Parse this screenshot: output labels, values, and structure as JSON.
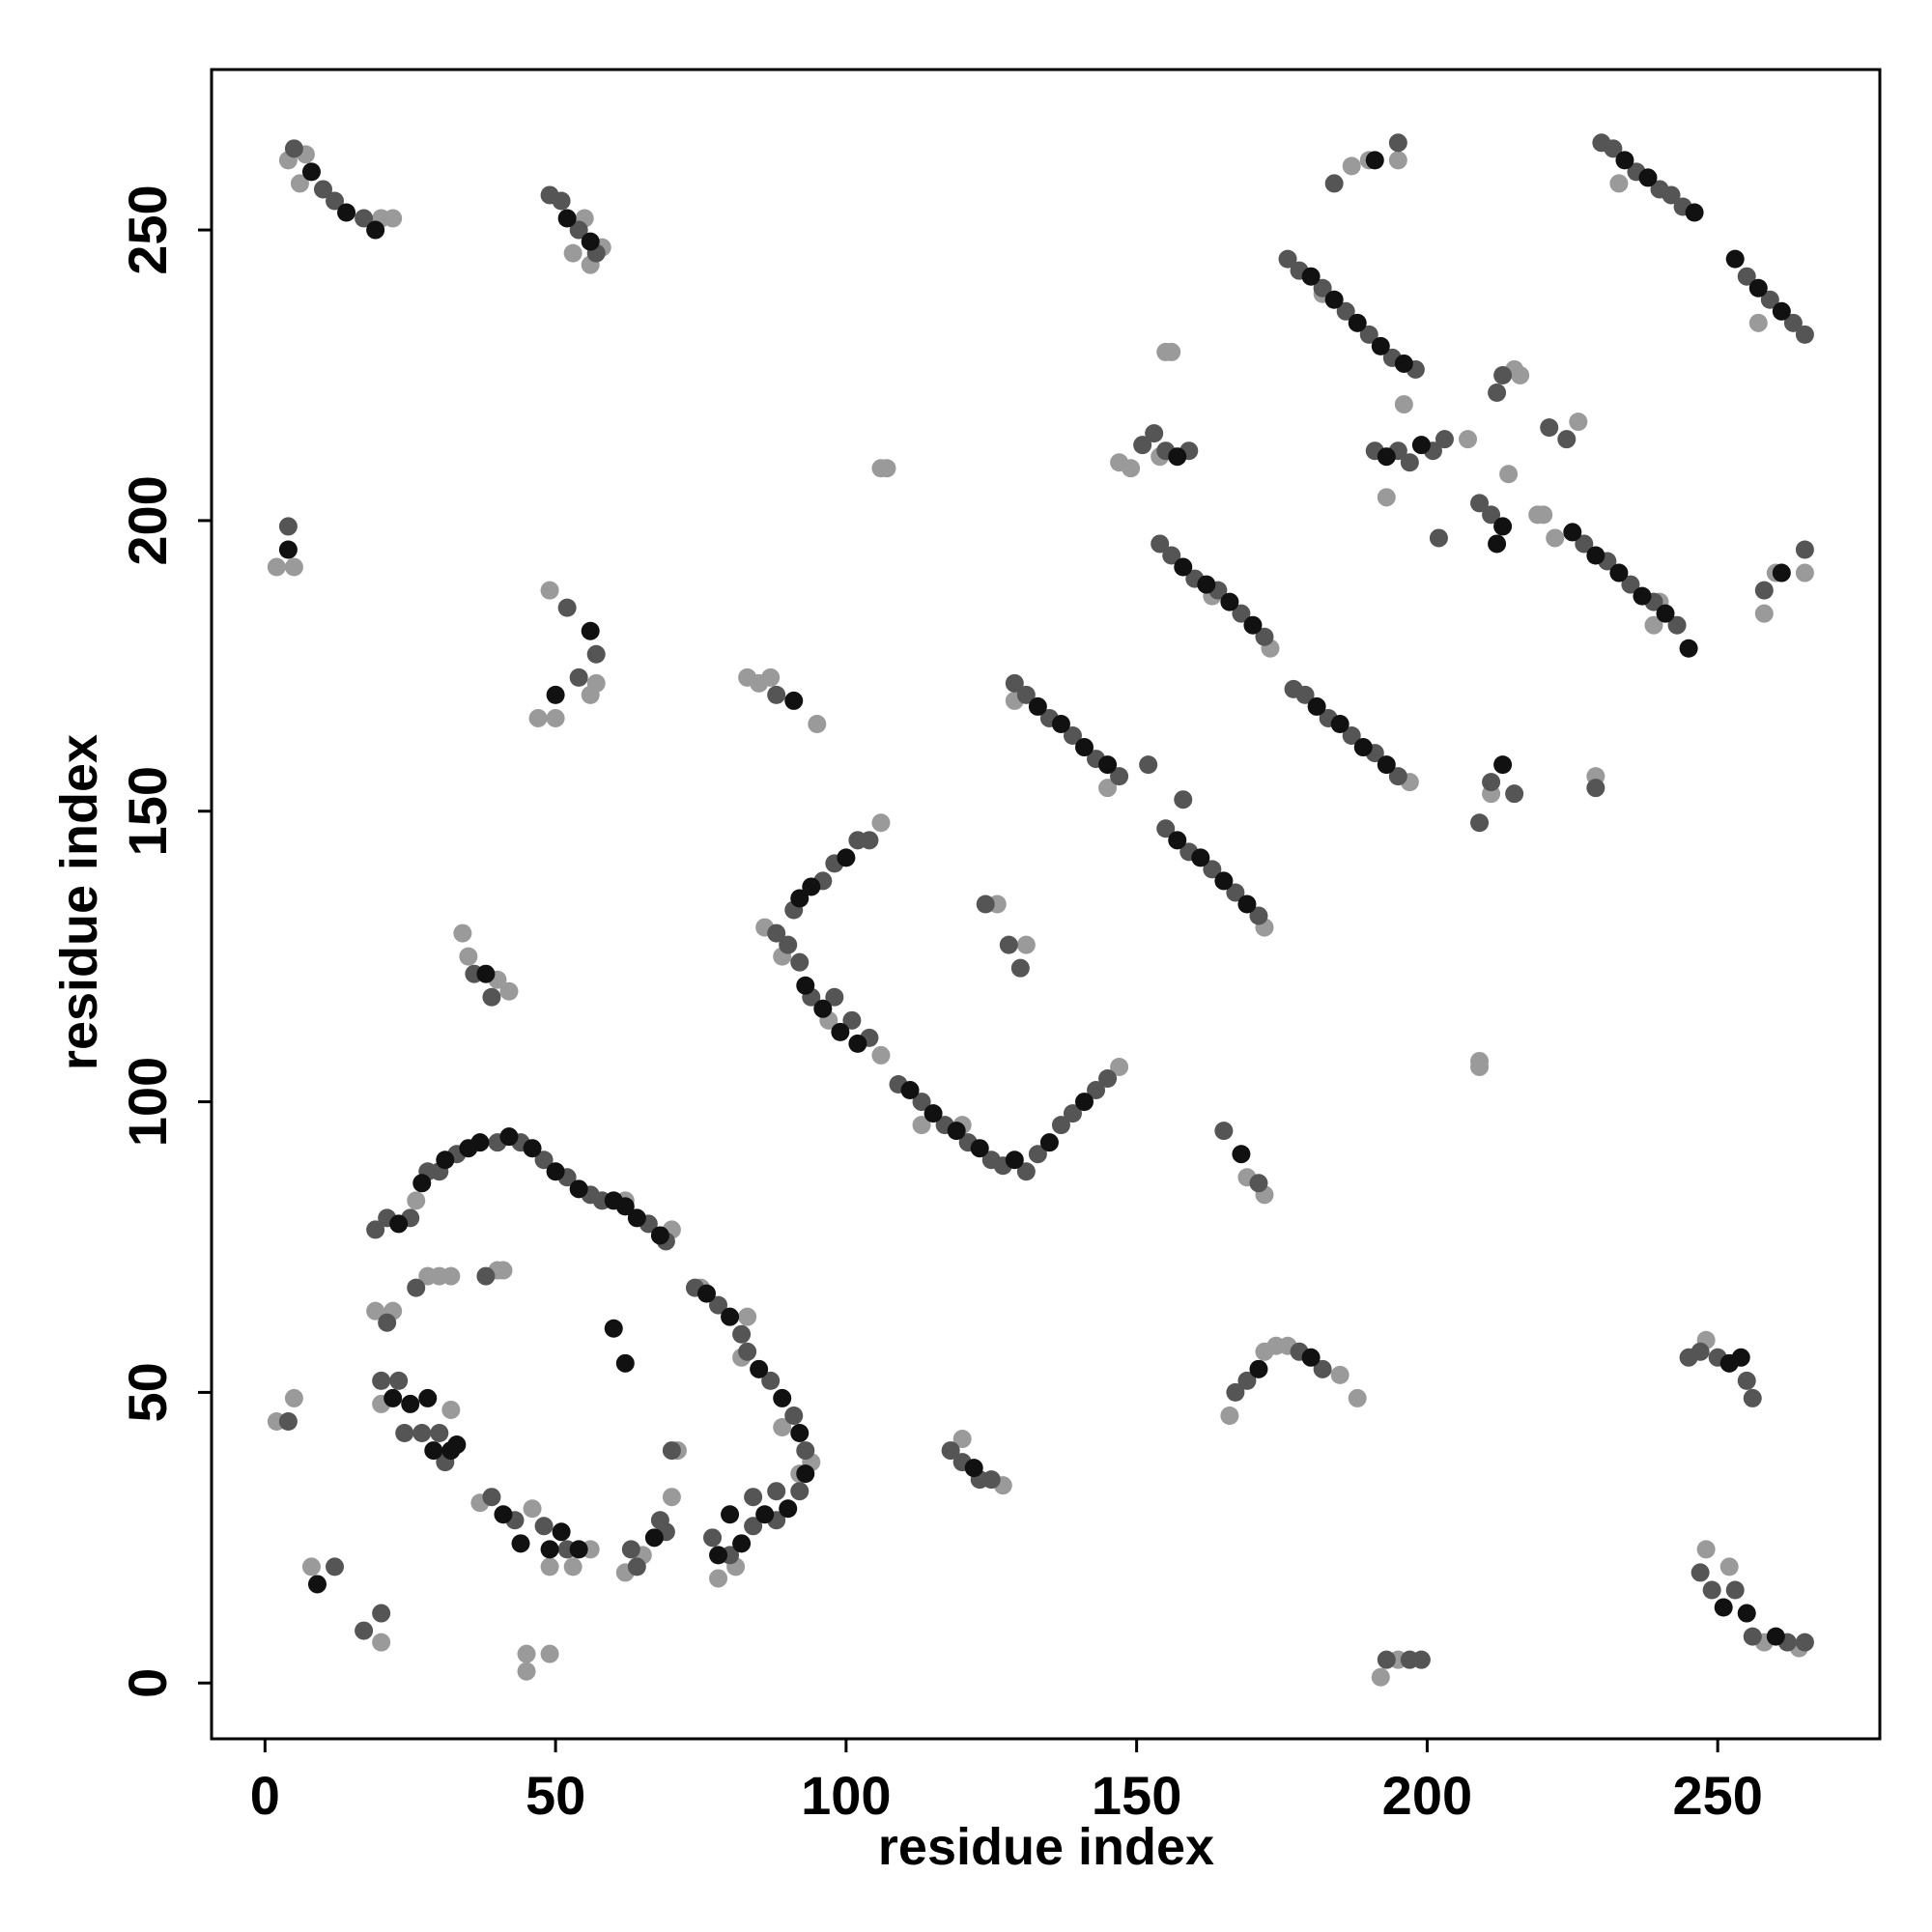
{
  "chart_data": {
    "type": "scatter",
    "xlabel": "residue index",
    "ylabel": "residue index",
    "xlim": [
      -9.2,
      277.9
    ],
    "ylim": [
      -9.6,
      277.6
    ],
    "xticks": [
      0,
      50,
      100,
      150,
      200,
      250
    ],
    "yticks": [
      0,
      50,
      100,
      150,
      200,
      250
    ],
    "grid": false,
    "series": [
      {
        "color": "#9a9a9a",
        "x": [
          4,
          6,
          7,
          20,
          22,
          53,
          56,
          58,
          55,
          2,
          5,
          47,
          49,
          56,
          57,
          50,
          34,
          35,
          40,
          42,
          26,
          62,
          70,
          83,
          89,
          94,
          92,
          78,
          81,
          19,
          22,
          20,
          28,
          30,
          32,
          40,
          41,
          32,
          37,
          46,
          49,
          53,
          56,
          62,
          65,
          70,
          71,
          8,
          20,
          45,
          45,
          49,
          2,
          5,
          83,
          85,
          87,
          95,
          86,
          106,
          89,
          97,
          106,
          113,
          120,
          147,
          107,
          106,
          126,
          131,
          129,
          145,
          173,
          172,
          197,
          229,
          209,
          169,
          172,
          166,
          172,
          174,
          176,
          185,
          188,
          248,
          248,
          252,
          258,
          264,
          192,
          195,
          127,
          120,
          187,
          190,
          195,
          260,
          265,
          258,
          147,
          149,
          155,
          156,
          193,
          214,
          215,
          216,
          219,
          196,
          207,
          226,
          220,
          222,
          211,
          209,
          239,
          182,
          163,
          240,
          257,
          233,
          154,
          75,
          82
        ],
        "y": [
          262,
          258,
          263,
          252,
          252,
          246,
          244,
          247,
          252,
          192,
          192,
          166,
          188,
          170,
          172,
          166,
          129,
          125,
          121,
          119,
          83,
          83,
          78,
          63,
          44,
          38,
          36,
          18,
          20,
          64,
          64,
          48,
          70,
          70,
          70,
          71,
          71,
          47,
          31,
          30,
          20,
          20,
          23,
          19,
          22,
          32,
          40,
          20,
          7,
          2,
          5,
          5,
          45,
          49,
          173,
          172,
          173,
          165,
          130,
          148,
          125,
          114,
          108,
          96,
          96,
          106,
          209,
          209,
          134,
          127,
          169,
          154,
          178,
          130,
          155,
          156,
          106,
          87,
          84,
          46,
          57,
          58,
          58,
          53,
          49,
          59,
          23,
          20,
          7,
          6,
          1,
          4,
          34,
          42,
          261,
          262,
          262,
          191,
          191,
          184,
          210,
          209,
          229,
          229,
          204,
          208,
          226,
          225,
          201,
          220,
          214,
          217,
          201,
          197,
          153,
          107,
          182,
          239,
          187,
          186,
          234,
          258,
          211,
          68,
          56
        ]
      },
      {
        "color": "#555555",
        "x": [
          5,
          10,
          12,
          17,
          49,
          51,
          54,
          57,
          4,
          52,
          54,
          57,
          36,
          39,
          19,
          21,
          25,
          28,
          30,
          33,
          40,
          44,
          48,
          52,
          56,
          58,
          66,
          69,
          74,
          78,
          82,
          83,
          87,
          91,
          93,
          92,
          88,
          84,
          80,
          77,
          84,
          88,
          20,
          23,
          24,
          27,
          30,
          31,
          26,
          38,
          39,
          43,
          48,
          52,
          63,
          68,
          69,
          70,
          12,
          17,
          20,
          4,
          88,
          88,
          91,
          96,
          98,
          102,
          104,
          90,
          92,
          94,
          98,
          101,
          104,
          109,
          113,
          117,
          121,
          125,
          127,
          131,
          133,
          137,
          139,
          143,
          145,
          129,
          131,
          135,
          139,
          143,
          147,
          152,
          155,
          159,
          163,
          167,
          171,
          158,
          154,
          156,
          160,
          164,
          168,
          172,
          177,
          179,
          183,
          187,
          191,
          195,
          176,
          178,
          182,
          186,
          190,
          194,
          198,
          227,
          231,
          235,
          239,
          243,
          230,
          232,
          236,
          240,
          242,
          244,
          255,
          259,
          263,
          265,
          258,
          265,
          184,
          195,
          151,
          153,
          155,
          159,
          191,
          195,
          197,
          201,
          203,
          202,
          209,
          211,
          212,
          213,
          221,
          224,
          211,
          215,
          209,
          229,
          165,
          171,
          167,
          169,
          178,
          182,
          245,
          247,
          250,
          255,
          256,
          247,
          249,
          253,
          256,
          262,
          265,
          193,
          197,
          199,
          118,
          120,
          123,
          125,
          124,
          128,
          130,
          21,
          64
        ],
        "y": [
          264,
          257,
          255,
          252,
          256,
          255,
          250,
          246,
          199,
          185,
          173,
          177,
          122,
          118,
          78,
          80,
          80,
          88,
          88,
          91,
          93,
          93,
          90,
          87,
          84,
          83,
          79,
          76,
          68,
          65,
          60,
          57,
          52,
          46,
          40,
          33,
          28,
          27,
          22,
          25,
          32,
          33,
          52,
          52,
          43,
          43,
          43,
          38,
          68,
          70,
          32,
          28,
          27,
          23,
          23,
          28,
          26,
          40,
          20,
          9,
          12,
          45,
          170,
          129,
          133,
          138,
          141,
          145,
          145,
          127,
          124,
          118,
          118,
          114,
          111,
          103,
          100,
          96,
          93,
          90,
          89,
          88,
          91,
          96,
          98,
          102,
          104,
          172,
          170,
          166,
          163,
          159,
          156,
          158,
          147,
          143,
          140,
          136,
          132,
          152,
          196,
          194,
          190,
          188,
          184,
          180,
          171,
          170,
          166,
          163,
          160,
          156,
          245,
          243,
          240,
          236,
          232,
          228,
          226,
          196,
          193,
          189,
          186,
          182,
          265,
          264,
          260,
          257,
          256,
          254,
          242,
          238,
          234,
          232,
          188,
          195,
          258,
          265,
          213,
          215,
          212,
          212,
          212,
          212,
          210,
          212,
          214,
          197,
          203,
          201,
          222,
          225,
          216,
          214,
          155,
          153,
          148,
          154,
          95,
          86,
          50,
          52,
          57,
          54,
          56,
          57,
          56,
          52,
          49,
          19,
          16,
          16,
          8,
          7,
          7,
          4,
          4,
          4,
          40,
          38,
          35,
          35,
          134,
          127,
          123,
          62,
          20
        ]
      },
      {
        "color": "#111111",
        "x": [
          8,
          14,
          19,
          52,
          56,
          4,
          50,
          56,
          38,
          23,
          27,
          31,
          37,
          42,
          46,
          50,
          54,
          60,
          64,
          68,
          76,
          80,
          85,
          89,
          92,
          93,
          90,
          86,
          82,
          78,
          80,
          22,
          25,
          28,
          29,
          32,
          41,
          44,
          49,
          51,
          54,
          67,
          62,
          60,
          9,
          91,
          92,
          94,
          93,
          96,
          99,
          102,
          111,
          115,
          119,
          123,
          129,
          135,
          141,
          133,
          137,
          141,
          145,
          157,
          161,
          165,
          169,
          158,
          162,
          166,
          170,
          181,
          185,
          189,
          193,
          180,
          184,
          188,
          192,
          196,
          225,
          229,
          233,
          237,
          241,
          245,
          234,
          238,
          246,
          253,
          257,
          261,
          191,
          261,
          157,
          193,
          199,
          212,
          213,
          213,
          168,
          171,
          180,
          252,
          254,
          251,
          255,
          260,
          122,
          100,
          62,
          35,
          33
        ],
        "y": [
          260,
          253,
          250,
          252,
          248,
          195,
          170,
          181,
          122,
          79,
          86,
          90,
          93,
          94,
          92,
          88,
          85,
          83,
          80,
          77,
          67,
          63,
          54,
          49,
          43,
          36,
          30,
          29,
          24,
          22,
          29,
          49,
          48,
          49,
          40,
          40,
          29,
          24,
          23,
          26,
          23,
          25,
          55,
          61,
          17,
          169,
          135,
          137,
          120,
          116,
          112,
          110,
          102,
          98,
          95,
          92,
          90,
          93,
          100,
          168,
          165,
          161,
          158,
          145,
          142,
          138,
          134,
          192,
          189,
          186,
          182,
          168,
          165,
          161,
          158,
          242,
          238,
          234,
          230,
          227,
          198,
          194,
          191,
          187,
          184,
          178,
          262,
          259,
          253,
          245,
          240,
          236,
          262,
          191,
          211,
          211,
          213,
          196,
          199,
          158,
          91,
          54,
          56,
          55,
          56,
          13,
          12,
          8,
          37,
          142,
          82,
          92,
          41
        ]
      }
    ]
  }
}
